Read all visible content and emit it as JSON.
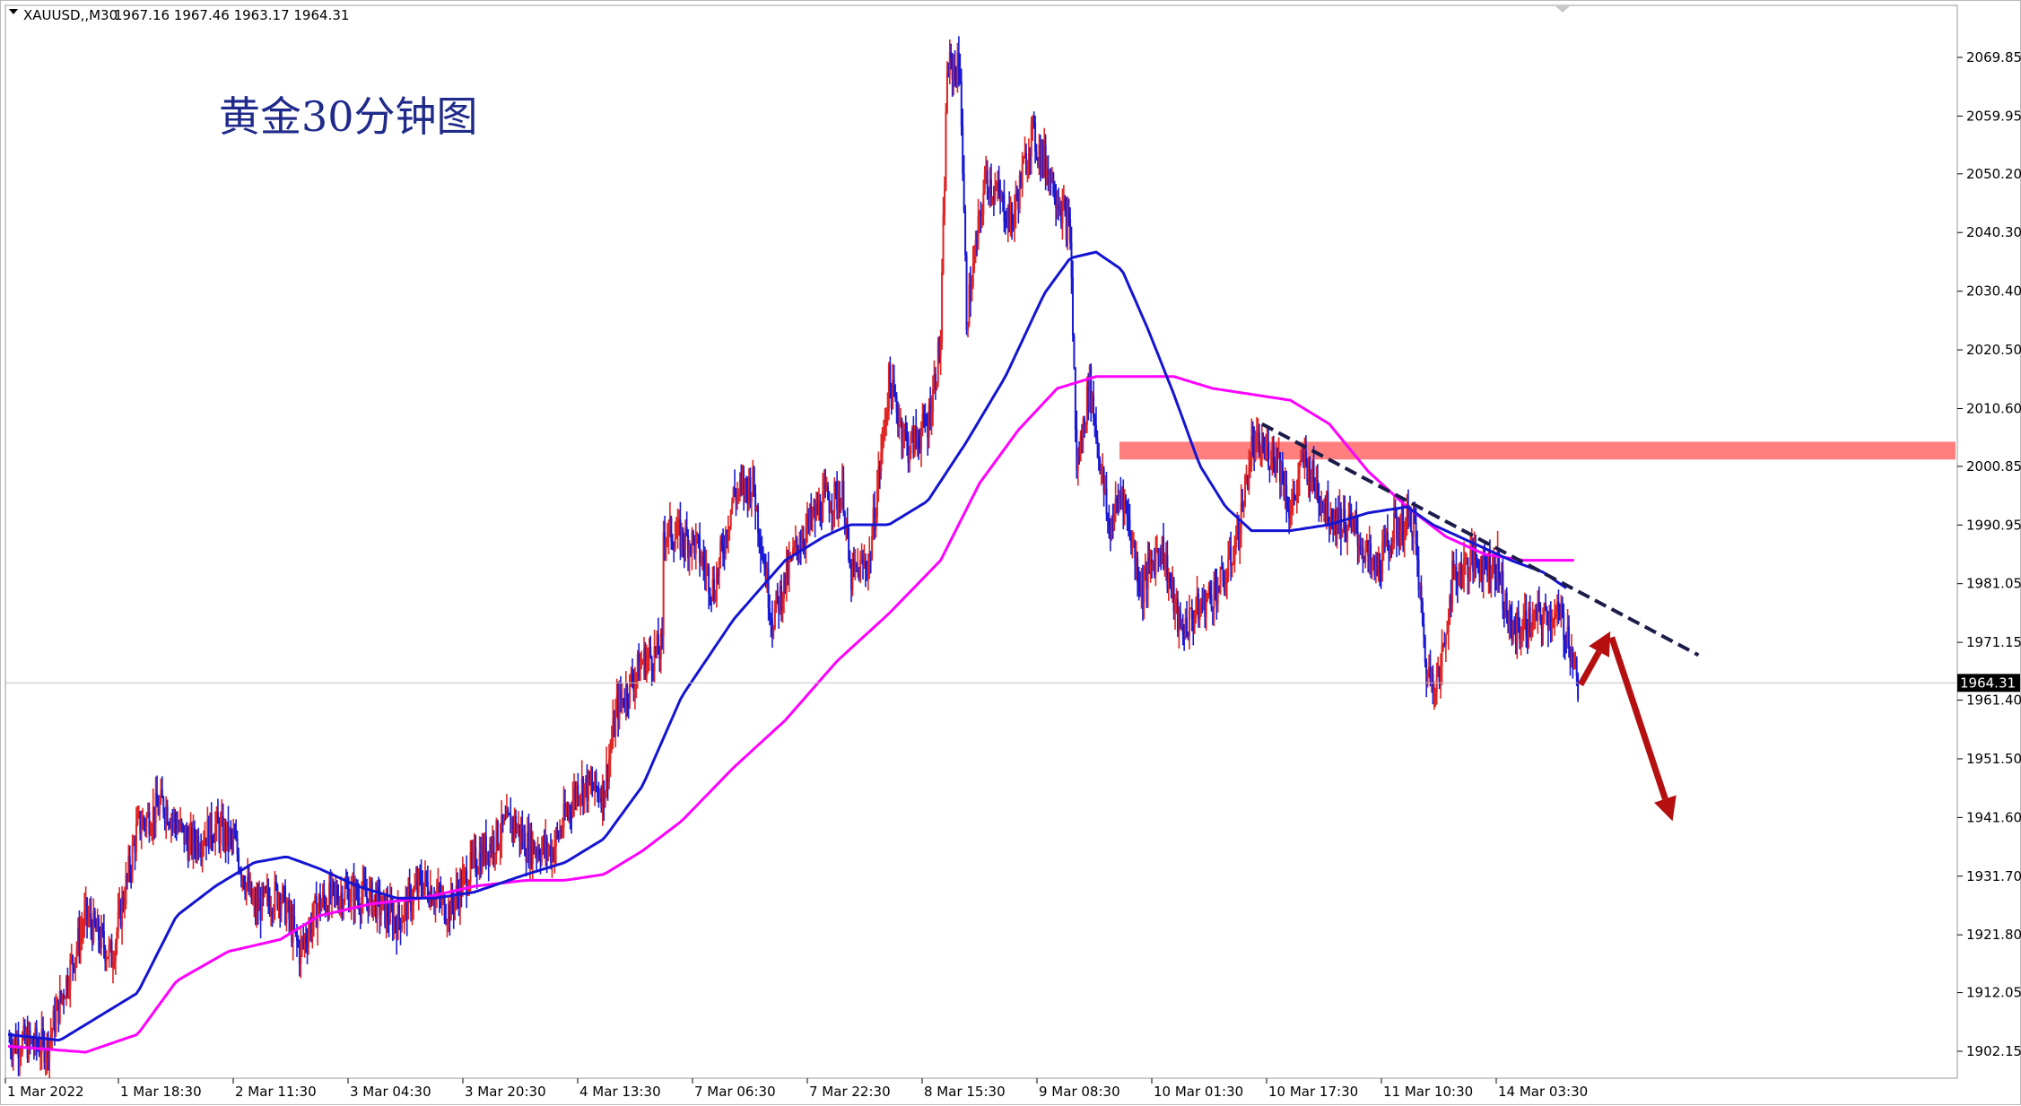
{
  "header": {
    "symbol_label": "XAUUSD,,M30",
    "ohlc_text": "1967.16 1967.46 1963.17 1964.31"
  },
  "annotation": {
    "title": "黄金30分钟图"
  },
  "price_box": {
    "value": "1964.31"
  },
  "colors": {
    "bull_candle": "#e02424",
    "bear_candle": "#1a1ad6",
    "ma_fast": "#1414d2",
    "ma_slow": "#ff00ff",
    "resistance_zone": "#ff7f7f",
    "trendline": "#1c1c4a",
    "forecast_arrow": "#b50f0f",
    "price_line": "#c0c0c0"
  },
  "chart_data": {
    "type": "candlestick",
    "symbol": "XAUUSD",
    "timeframe": "M30",
    "ylim": [
      1898,
      2074
    ],
    "y_ticks": [
      "2069.85",
      "2059.95",
      "2050.20",
      "2040.30",
      "2030.40",
      "2020.50",
      "2010.60",
      "2000.85",
      "1990.95",
      "1981.05",
      "1971.15",
      "1961.40",
      "1951.50",
      "1941.60",
      "1931.70",
      "1921.80",
      "1912.05",
      "1902.15"
    ],
    "x_ticks": [
      "1 Mar 2022",
      "1 Mar 18:30",
      "2 Mar 11:30",
      "3 Mar 04:30",
      "3 Mar 20:30",
      "4 Mar 13:30",
      "7 Mar 06:30",
      "7 Mar 22:30",
      "8 Mar 15:30",
      "9 Mar 08:30",
      "10 Mar 01:30",
      "10 Mar 17:30",
      "11 Mar 10:30",
      "14 Mar 03:30"
    ],
    "current_price": 1964.31,
    "price_anchors": [
      [
        0,
        1904
      ],
      [
        30,
        1903
      ],
      [
        60,
        1925
      ],
      [
        80,
        1918
      ],
      [
        100,
        1940
      ],
      [
        120,
        1944
      ],
      [
        140,
        1937
      ],
      [
        160,
        1940
      ],
      [
        175,
        1937
      ],
      [
        190,
        1926
      ],
      [
        210,
        1929
      ],
      [
        225,
        1919
      ],
      [
        240,
        1927
      ],
      [
        260,
        1929
      ],
      [
        280,
        1928
      ],
      [
        300,
        1924
      ],
      [
        320,
        1931
      ],
      [
        340,
        1926
      ],
      [
        360,
        1934
      ],
      [
        380,
        1939
      ],
      [
        390,
        1941
      ],
      [
        400,
        1937
      ],
      [
        420,
        1936
      ],
      [
        440,
        1947
      ],
      [
        460,
        1946
      ],
      [
        470,
        1960
      ],
      [
        490,
        1968
      ],
      [
        505,
        1970
      ],
      [
        506,
        1990
      ],
      [
        530,
        1988
      ],
      [
        545,
        1980
      ],
      [
        560,
        1996
      ],
      [
        575,
        1998
      ],
      [
        590,
        1975
      ],
      [
        610,
        1988
      ],
      [
        630,
        1995
      ],
      [
        645,
        1996
      ],
      [
        650,
        1982
      ],
      [
        665,
        1985
      ],
      [
        680,
        2015
      ],
      [
        695,
        2004
      ],
      [
        710,
        2008
      ],
      [
        720,
        2022
      ],
      [
        725,
        2068
      ],
      [
        735,
        2068
      ],
      [
        740,
        2026
      ],
      [
        755,
        2050
      ],
      [
        775,
        2042
      ],
      [
        790,
        2057
      ],
      [
        805,
        2050
      ],
      [
        820,
        2040
      ],
      [
        825,
        2000
      ],
      [
        835,
        2015
      ],
      [
        850,
        1990
      ],
      [
        860,
        1997
      ],
      [
        875,
        1980
      ],
      [
        890,
        1988
      ],
      [
        905,
        1973
      ],
      [
        920,
        1977
      ],
      [
        940,
        1982
      ],
      [
        950,
        1990
      ],
      [
        960,
        2004
      ],
      [
        980,
        2003
      ],
      [
        990,
        1993
      ],
      [
        1000,
        2002
      ],
      [
        1020,
        1993
      ],
      [
        1040,
        1990
      ],
      [
        1055,
        1983
      ],
      [
        1070,
        1990
      ],
      [
        1085,
        1992
      ],
      [
        1095,
        1966
      ],
      [
        1105,
        1965
      ],
      [
        1115,
        1982
      ],
      [
        1130,
        1985
      ],
      [
        1150,
        1984
      ],
      [
        1160,
        1973
      ],
      [
        1180,
        1975
      ],
      [
        1195,
        1976
      ],
      [
        1205,
        1972
      ],
      [
        1212,
        1964
      ]
    ],
    "ma_fast_values": [
      [
        0,
        1905
      ],
      [
        40,
        1904
      ],
      [
        70,
        1908
      ],
      [
        100,
        1912
      ],
      [
        130,
        1925
      ],
      [
        160,
        1930
      ],
      [
        190,
        1934
      ],
      [
        215,
        1935
      ],
      [
        240,
        1933
      ],
      [
        270,
        1930
      ],
      [
        300,
        1928
      ],
      [
        330,
        1928
      ],
      [
        360,
        1929
      ],
      [
        400,
        1932
      ],
      [
        430,
        1934
      ],
      [
        460,
        1938
      ],
      [
        490,
        1947
      ],
      [
        520,
        1962
      ],
      [
        560,
        1975
      ],
      [
        580,
        1980
      ],
      [
        600,
        1985
      ],
      [
        630,
        1989
      ],
      [
        650,
        1991
      ],
      [
        680,
        1991
      ],
      [
        710,
        1995
      ],
      [
        740,
        2005
      ],
      [
        770,
        2016
      ],
      [
        800,
        2030
      ],
      [
        820,
        2036
      ],
      [
        840,
        2037
      ],
      [
        860,
        2034
      ],
      [
        880,
        2024
      ],
      [
        900,
        2013
      ],
      [
        920,
        2001
      ],
      [
        940,
        1994
      ],
      [
        960,
        1990
      ],
      [
        990,
        1990
      ],
      [
        1020,
        1991
      ],
      [
        1050,
        1993
      ],
      [
        1080,
        1994
      ],
      [
        1100,
        1991
      ],
      [
        1130,
        1988
      ],
      [
        1160,
        1985
      ],
      [
        1185,
        1983
      ],
      [
        1205,
        1980
      ]
    ],
    "ma_slow_values": [
      [
        0,
        1903
      ],
      [
        60,
        1902
      ],
      [
        100,
        1905
      ],
      [
        130,
        1914
      ],
      [
        170,
        1919
      ],
      [
        210,
        1921
      ],
      [
        240,
        1925
      ],
      [
        280,
        1927
      ],
      [
        320,
        1928
      ],
      [
        360,
        1930
      ],
      [
        400,
        1931
      ],
      [
        430,
        1931
      ],
      [
        460,
        1932
      ],
      [
        490,
        1936
      ],
      [
        520,
        1941
      ],
      [
        560,
        1950
      ],
      [
        600,
        1958
      ],
      [
        640,
        1968
      ],
      [
        680,
        1976
      ],
      [
        720,
        1985
      ],
      [
        750,
        1998
      ],
      [
        780,
        2007
      ],
      [
        810,
        2014
      ],
      [
        840,
        2016
      ],
      [
        870,
        2016
      ],
      [
        900,
        2016
      ],
      [
        930,
        2014
      ],
      [
        960,
        2013
      ],
      [
        990,
        2012
      ],
      [
        1020,
        2008
      ],
      [
        1050,
        2000
      ],
      [
        1080,
        1994
      ],
      [
        1110,
        1989
      ],
      [
        1140,
        1986
      ],
      [
        1170,
        1985
      ],
      [
        1210,
        1985
      ]
    ],
    "resistance_zone": [
      2002,
      2005
    ],
    "trendline": {
      "from": [
        968,
        2008
      ],
      "to": [
        1305,
        1969
      ]
    },
    "forecast_up": {
      "from": [
        1214,
        1964
      ],
      "to": [
        1237,
        1973
      ]
    },
    "forecast_down": {
      "from": [
        1238,
        1972
      ],
      "to": [
        1285,
        1941
      ]
    }
  }
}
